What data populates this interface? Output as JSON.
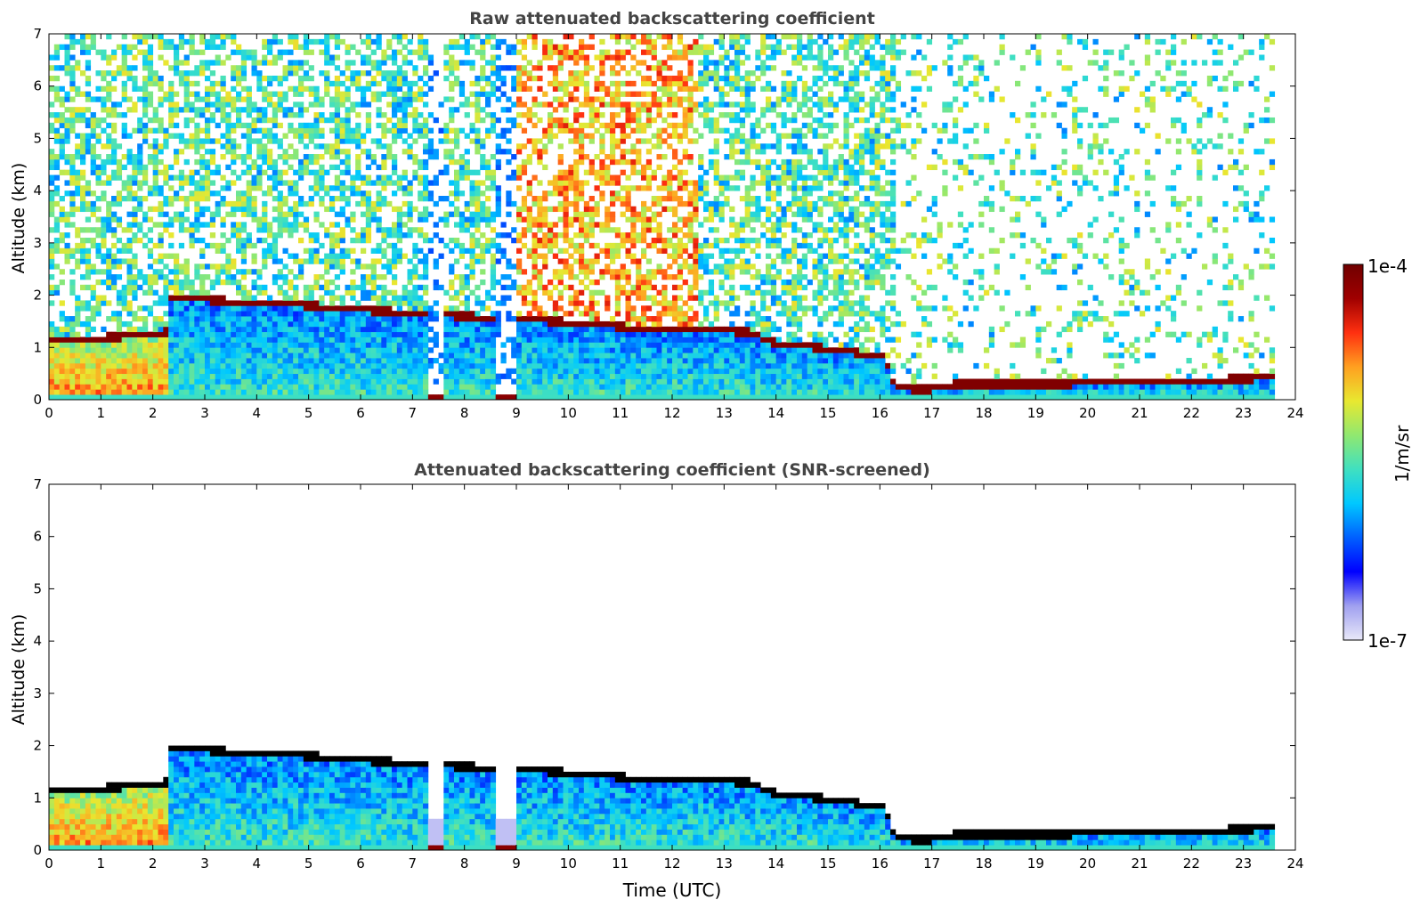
{
  "chart_data": [
    {
      "type": "heatmap",
      "title": "Raw attenuated backscattering coefficient",
      "xlabel": "",
      "ylabel": "Altitude (km)",
      "xlim": [
        0,
        24
      ],
      "ylim": [
        0,
        7
      ],
      "xticks": [
        "0",
        "1",
        "2",
        "3",
        "4",
        "5",
        "6",
        "7",
        "8",
        "9",
        "10",
        "11",
        "12",
        "13",
        "14",
        "15",
        "16",
        "17",
        "18",
        "19",
        "20",
        "21",
        "22",
        "23",
        "24"
      ],
      "yticks": [
        "0",
        "1",
        "2",
        "3",
        "4",
        "5",
        "6",
        "7"
      ],
      "data_end_hour": 23.6,
      "screened": false,
      "features": {
        "cloud_base_km": [
          [
            0,
            1.13
          ],
          [
            1,
            1.18
          ],
          [
            2,
            1.25
          ],
          [
            2.3,
            1.3
          ],
          [
            2.32,
            1.96
          ],
          [
            3,
            1.92
          ],
          [
            4,
            1.85
          ],
          [
            5.1,
            1.8
          ],
          [
            5.5,
            1.74
          ],
          [
            6.5,
            1.7
          ],
          [
            7.0,
            1.65
          ],
          [
            9.05,
            1.55
          ],
          [
            10,
            1.48
          ],
          [
            11,
            1.4
          ],
          [
            11.5,
            1.33
          ],
          [
            12,
            1.38
          ],
          [
            13,
            1.33
          ],
          [
            13.6,
            1.28
          ],
          [
            13.9,
            1.1
          ],
          [
            14.6,
            1.02
          ],
          [
            15.5,
            0.92
          ],
          [
            16.1,
            0.8
          ],
          [
            16.3,
            0.22
          ],
          [
            17.0,
            0.2
          ],
          [
            17.5,
            0.3
          ],
          [
            19,
            0.3
          ],
          [
            21,
            0.33
          ],
          [
            23.5,
            0.42
          ]
        ],
        "noise_gap_hours": [
          [
            7.3,
            7.6
          ],
          [
            8.6,
            9.0
          ]
        ],
        "clear_sky_after_hour": 16.3,
        "high_noise_hours": [
          9.0,
          12.5
        ]
      }
    },
    {
      "type": "heatmap",
      "title": "Attenuated backscattering coefficient (SNR-screened)",
      "xlabel": "Time (UTC)",
      "ylabel": "Altitude (km)",
      "xlim": [
        0,
        24
      ],
      "ylim": [
        0,
        7
      ],
      "xticks": [
        "0",
        "1",
        "2",
        "3",
        "4",
        "5",
        "6",
        "7",
        "8",
        "9",
        "10",
        "11",
        "12",
        "13",
        "14",
        "15",
        "16",
        "17",
        "18",
        "19",
        "20",
        "21",
        "22",
        "23",
        "24"
      ],
      "yticks": [
        "0",
        "1",
        "2",
        "3",
        "4",
        "5",
        "6",
        "7"
      ],
      "data_end_hour": 23.6,
      "screened": true
    }
  ],
  "colorbar": {
    "label": "1/m/sr",
    "max_label": "1e-4",
    "min_label": "1e-7",
    "scale": "log",
    "colormap": [
      "#e8e8f8",
      "#a0a0f0",
      "#0000ff",
      "#0060ff",
      "#00c8ff",
      "#40e0c0",
      "#90e870",
      "#e8e830",
      "#ffa020",
      "#ff3010",
      "#a00000",
      "#700000"
    ]
  }
}
